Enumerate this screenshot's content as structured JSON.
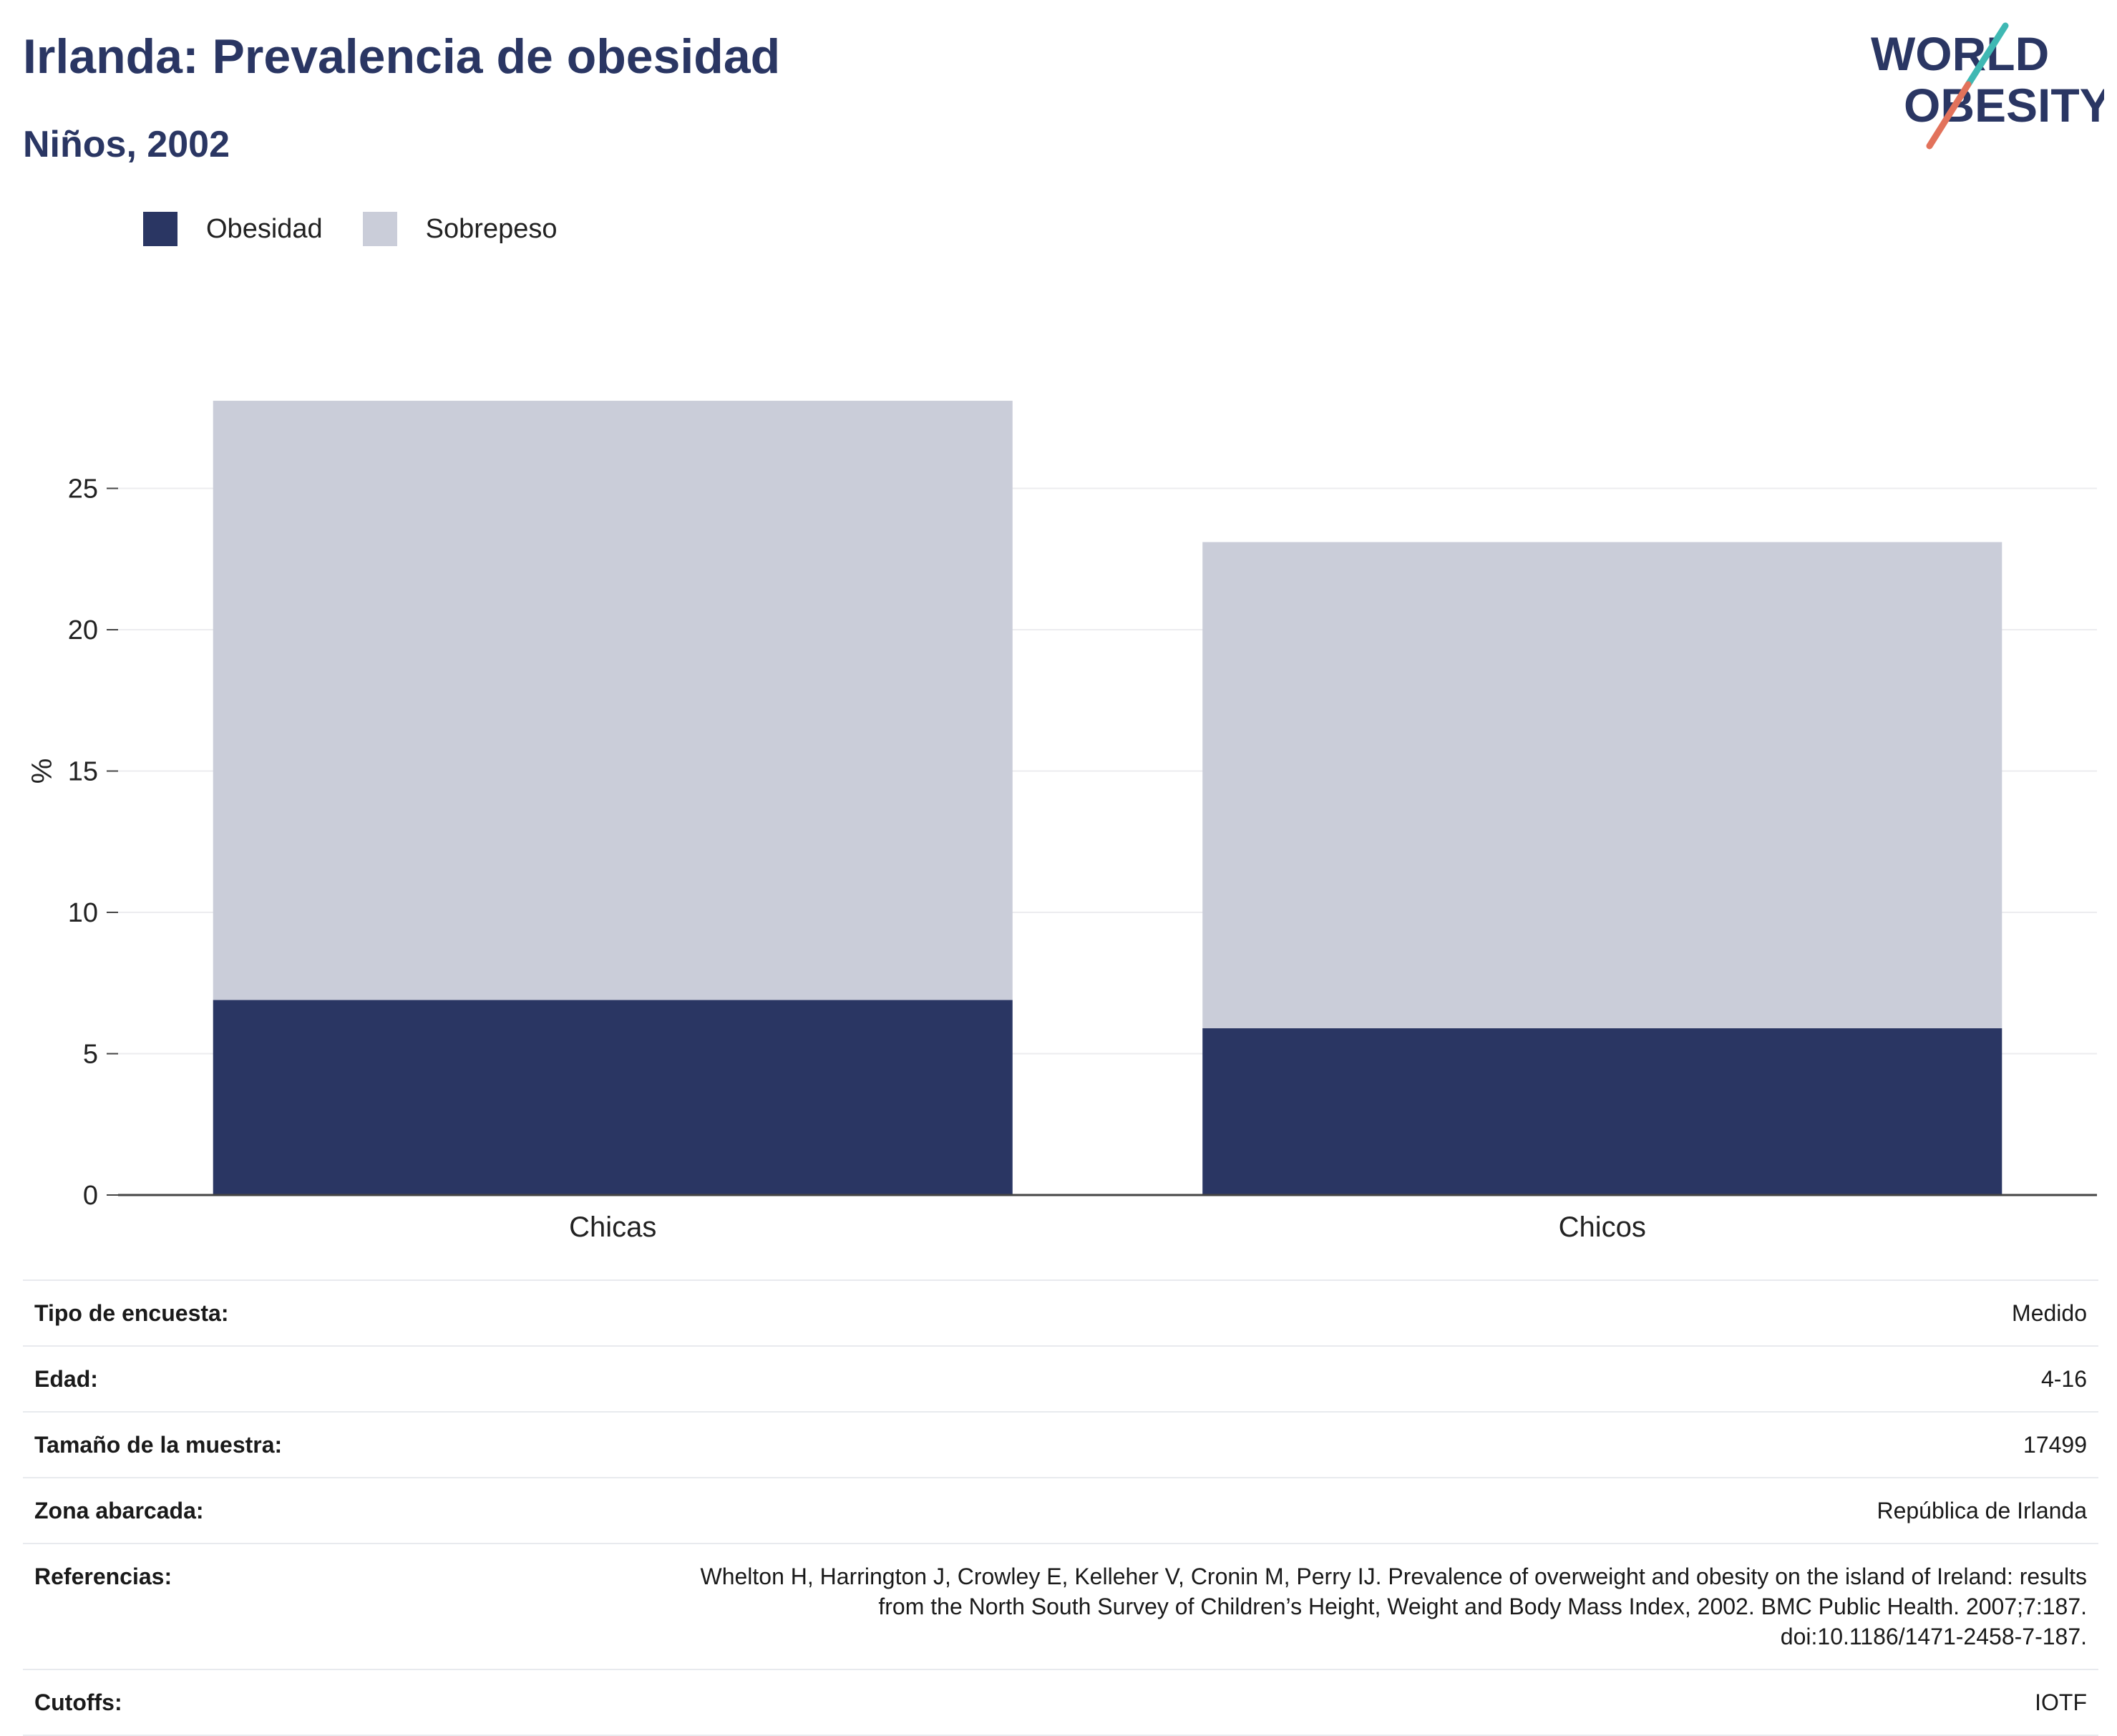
{
  "header": {
    "title": "Irlanda: Prevalencia de obesidad",
    "subtitle": "Niños, 2002"
  },
  "logo": {
    "line1": "WORLD",
    "line2": "OBESITY"
  },
  "colors": {
    "obesity": "#2a3663",
    "overweight": "#cacdd9",
    "accent_teal": "#3fb8b3",
    "accent_coral": "#e2725b"
  },
  "chart_data": {
    "type": "bar",
    "stacked": true,
    "categories": [
      "Chicas",
      "Chicos"
    ],
    "series": [
      {
        "name": "Obesidad",
        "values": [
          6.9,
          5.9
        ]
      },
      {
        "name": "Sobrepeso",
        "values": [
          21.2,
          17.2
        ]
      }
    ],
    "ylabel": "%",
    "ylim": [
      0,
      28.1
    ],
    "yticks": [
      0,
      5,
      10,
      15,
      20,
      25
    ],
    "legend_position": "top-left",
    "grid": true
  },
  "meta": [
    {
      "key": "Tipo de encuesta:",
      "value": "Medido"
    },
    {
      "key": "Edad:",
      "value": "4-16"
    },
    {
      "key": "Tamaño de la muestra:",
      "value": "17499"
    },
    {
      "key": "Zona abarcada:",
      "value": "República de Irlanda"
    },
    {
      "key": "Referencias:",
      "value_lines": [
        "Whelton H, Harrington J, Crowley E, Kelleher V, Cronin M, Perry IJ. Prevalence of overweight and obesity on the island of Ireland: results",
        "from the North South Survey of Children’s Height, Weight and Body Mass Index, 2002. BMC Public Health. 2007;7:187.",
        "doi:10.1186/1471-2458-7-187."
      ]
    },
    {
      "key": "Cutoffs:",
      "value": "IOTF"
    }
  ]
}
